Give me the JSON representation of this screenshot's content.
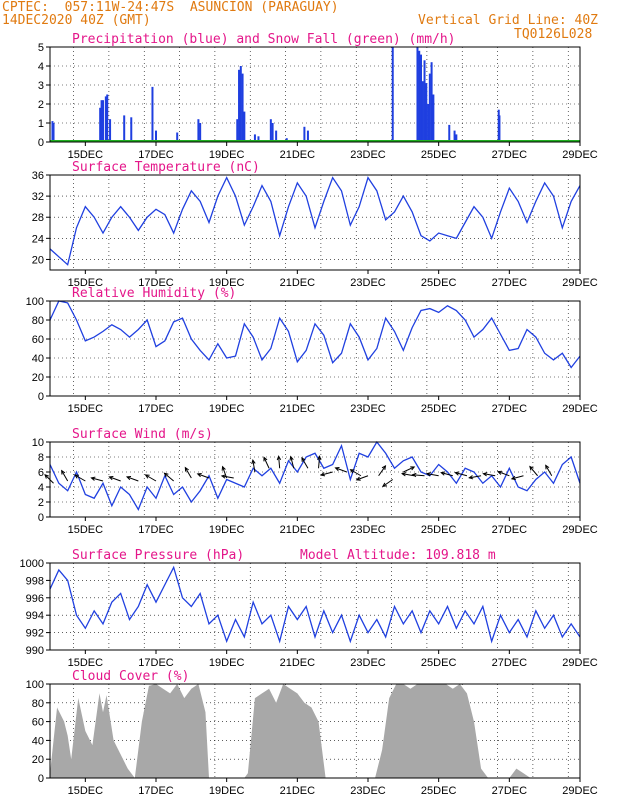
{
  "header": {
    "line1": "CPTEC:  057:11W-24:47S  ASUNCION (PARAGUAY)",
    "line2": "14DEC2020 40Z (GMT)",
    "grid_note": "Vertical Grid Line: 40Z",
    "run_id": "TQ0126L028"
  },
  "colors": {
    "header": "#e07a10",
    "title": "#e4168a",
    "precip": "#1f3fe0",
    "snow": "#20b020",
    "line": "#2040e0",
    "cloud": "#a8a8a8"
  },
  "chart_data": [
    {
      "type": "bar",
      "title": "Precipitation (blue) and Snow Fall (green) (mm/h)",
      "x_start_day": 14.0,
      "x_range": [
        14.0,
        29.0
      ],
      "x_ticks": [
        "15DEC",
        "17DEC",
        "19DEC",
        "21DEC",
        "23DEC",
        "25DEC",
        "27DEC",
        "29DEC"
      ],
      "ylim": [
        0,
        5
      ],
      "yticks": [
        0,
        1,
        2,
        3,
        4,
        5
      ],
      "series": [
        {
          "name": "Precipitation",
          "points": [
            [
              14.07,
              1.1
            ],
            [
              14.1,
              1.0
            ],
            [
              15.42,
              1.8
            ],
            [
              15.46,
              2.2
            ],
            [
              15.5,
              2.2
            ],
            [
              15.58,
              2.4
            ],
            [
              15.62,
              2.5
            ],
            [
              15.7,
              1.2
            ],
            [
              16.1,
              1.4
            ],
            [
              16.3,
              1.3
            ],
            [
              16.9,
              2.9
            ],
            [
              17.0,
              0.6
            ],
            [
              17.6,
              0.5
            ],
            [
              18.2,
              1.2
            ],
            [
              18.25,
              1.0
            ],
            [
              19.3,
              1.2
            ],
            [
              19.35,
              3.8
            ],
            [
              19.4,
              4.0
            ],
            [
              19.45,
              3.6
            ],
            [
              19.5,
              1.6
            ],
            [
              19.8,
              0.4
            ],
            [
              19.9,
              0.3
            ],
            [
              20.25,
              1.2
            ],
            [
              20.3,
              1.0
            ],
            [
              20.4,
              0.6
            ],
            [
              20.7,
              0.2
            ],
            [
              21.2,
              0.8
            ],
            [
              21.3,
              0.6
            ],
            [
              23.7,
              5.0
            ],
            [
              24.4,
              5.0
            ],
            [
              24.45,
              4.8
            ],
            [
              24.5,
              4.6
            ],
            [
              24.55,
              3.2
            ],
            [
              24.6,
              4.3
            ],
            [
              24.65,
              3.1
            ],
            [
              24.7,
              2.0
            ],
            [
              24.75,
              3.6
            ],
            [
              24.8,
              4.2
            ],
            [
              24.85,
              2.5
            ],
            [
              25.3,
              0.9
            ],
            [
              25.45,
              0.6
            ],
            [
              25.5,
              0.4
            ],
            [
              26.7,
              1.7
            ],
            [
              26.72,
              1.4
            ]
          ]
        },
        {
          "name": "Snow Fall",
          "points": [
            [
              14.0,
              0
            ],
            [
              29.0,
              0
            ]
          ]
        }
      ]
    },
    {
      "type": "line",
      "title": "Surface Temperature (nC)",
      "x_ticks": [
        "15DEC",
        "17DEC",
        "19DEC",
        "21DEC",
        "23DEC",
        "25DEC",
        "27DEC",
        "29DEC"
      ],
      "ylim": [
        18,
        36
      ],
      "yticks": [
        20,
        24,
        28,
        32,
        36
      ],
      "x": [
        14.0,
        14.25,
        14.5,
        14.75,
        15.0,
        15.25,
        15.5,
        15.75,
        16.0,
        16.25,
        16.5,
        16.75,
        17.0,
        17.25,
        17.5,
        17.75,
        18.0,
        18.25,
        18.5,
        18.75,
        19.0,
        19.25,
        19.5,
        19.75,
        20.0,
        20.25,
        20.5,
        20.75,
        21.0,
        21.25,
        21.5,
        21.75,
        22.0,
        22.25,
        22.5,
        22.75,
        23.0,
        23.25,
        23.5,
        23.75,
        24.0,
        24.25,
        24.5,
        24.75,
        25.0,
        25.25,
        25.5,
        25.75,
        26.0,
        26.25,
        26.5,
        26.75,
        27.0,
        27.25,
        27.5,
        27.75,
        28.0,
        28.25,
        28.5,
        28.75,
        29.0
      ],
      "y": [
        22.0,
        20.5,
        19.0,
        26.0,
        30.0,
        28.0,
        25.0,
        28.0,
        30.0,
        28.0,
        25.5,
        28.0,
        29.5,
        28.5,
        25.0,
        29.5,
        33.0,
        31.0,
        27.0,
        32.0,
        35.5,
        32.0,
        26.5,
        30.0,
        34.0,
        31.0,
        24.5,
        30.0,
        34.5,
        32.0,
        26.0,
        31.0,
        35.5,
        33.0,
        26.5,
        30.0,
        35.5,
        33.0,
        27.5,
        29.0,
        32.0,
        29.0,
        24.5,
        23.5,
        25.0,
        24.5,
        24.0,
        27.0,
        30.0,
        28.0,
        24.0,
        29.0,
        33.5,
        31.0,
        27.0,
        31.0,
        34.5,
        32.0,
        26.0,
        31.0,
        34.0
      ]
    },
    {
      "type": "line",
      "title": "Relative Humidity (%)",
      "x_ticks": [
        "15DEC",
        "17DEC",
        "19DEC",
        "21DEC",
        "23DEC",
        "25DEC",
        "27DEC",
        "29DEC"
      ],
      "ylim": [
        0,
        100
      ],
      "yticks": [
        0,
        20,
        40,
        60,
        80,
        100
      ],
      "x": [
        14.0,
        14.25,
        14.5,
        14.75,
        15.0,
        15.25,
        15.5,
        15.75,
        16.0,
        16.25,
        16.5,
        16.75,
        17.0,
        17.25,
        17.5,
        17.75,
        18.0,
        18.25,
        18.5,
        18.75,
        19.0,
        19.25,
        19.5,
        19.75,
        20.0,
        20.25,
        20.5,
        20.75,
        21.0,
        21.25,
        21.5,
        21.75,
        22.0,
        22.25,
        22.5,
        22.75,
        23.0,
        23.25,
        23.5,
        23.75,
        24.0,
        24.25,
        24.5,
        24.75,
        25.0,
        25.25,
        25.5,
        25.75,
        26.0,
        26.25,
        26.5,
        26.75,
        27.0,
        27.25,
        27.5,
        27.75,
        28.0,
        28.25,
        28.5,
        28.75,
        29.0
      ],
      "y": [
        80,
        100,
        98,
        80,
        58,
        62,
        68,
        75,
        70,
        62,
        70,
        80,
        52,
        58,
        78,
        82,
        60,
        48,
        38,
        55,
        40,
        42,
        76,
        62,
        38,
        50,
        82,
        68,
        36,
        48,
        76,
        64,
        35,
        45,
        76,
        62,
        38,
        50,
        82,
        68,
        48,
        72,
        90,
        92,
        88,
        95,
        90,
        80,
        62,
        70,
        82,
        65,
        48,
        50,
        70,
        62,
        45,
        38,
        45,
        30,
        42
      ]
    },
    {
      "type": "line",
      "title": "Surface Wind (m/s)",
      "x_ticks": [
        "15DEC",
        "17DEC",
        "19DEC",
        "21DEC",
        "23DEC",
        "25DEC",
        "27DEC",
        "29DEC"
      ],
      "ylim": [
        0,
        10
      ],
      "yticks": [
        0,
        2,
        4,
        6,
        8,
        10
      ],
      "x": [
        14.0,
        14.25,
        14.5,
        14.75,
        15.0,
        15.25,
        15.5,
        15.75,
        16.0,
        16.25,
        16.5,
        16.75,
        17.0,
        17.25,
        17.5,
        17.75,
        18.0,
        18.25,
        18.5,
        18.75,
        19.0,
        19.25,
        19.5,
        19.75,
        20.0,
        20.25,
        20.5,
        20.75,
        21.0,
        21.25,
        21.5,
        21.75,
        22.0,
        22.25,
        22.5,
        22.75,
        23.0,
        23.25,
        23.5,
        23.75,
        24.0,
        24.25,
        24.5,
        24.75,
        25.0,
        25.25,
        25.5,
        25.75,
        26.0,
        26.25,
        26.5,
        26.75,
        27.0,
        27.25,
        27.5,
        27.75,
        28.0,
        28.25,
        28.5,
        28.75,
        29.0
      ],
      "y": [
        7.0,
        4.5,
        3.5,
        6.0,
        3.0,
        2.5,
        4.5,
        1.5,
        4.0,
        3.0,
        1.0,
        4.0,
        2.5,
        5.5,
        3.0,
        4.0,
        2.0,
        3.5,
        5.5,
        2.5,
        5.0,
        4.5,
        4.0,
        6.5,
        5.5,
        6.5,
        4.5,
        7.5,
        6.0,
        8.0,
        8.5,
        6.5,
        7.0,
        9.5,
        5.0,
        8.5,
        8.0,
        10.0,
        8.5,
        6.5,
        7.5,
        8.0,
        6.0,
        5.5,
        7.0,
        6.0,
        4.5,
        6.5,
        6.0,
        4.5,
        5.5,
        4.0,
        6.5,
        4.0,
        3.5,
        5.0,
        6.0,
        4.5,
        7.0,
        8.0,
        4.5
      ],
      "arrows": [
        [
          14.1,
          4.5,
          135
        ],
        [
          14.5,
          4.8,
          120
        ],
        [
          15.0,
          4.8,
          150
        ],
        [
          15.5,
          4.8,
          165
        ],
        [
          16.0,
          4.8,
          160
        ],
        [
          16.5,
          4.8,
          160
        ],
        [
          17.0,
          4.8,
          150
        ],
        [
          17.5,
          4.8,
          140
        ],
        [
          18.0,
          5.2,
          120
        ],
        [
          18.5,
          5.2,
          160
        ],
        [
          19.0,
          5.2,
          110
        ],
        [
          19.2,
          5.2,
          170
        ],
        [
          19.8,
          6.0,
          100
        ],
        [
          20.2,
          6.5,
          115
        ],
        [
          20.5,
          6.5,
          95
        ],
        [
          20.9,
          6.5,
          105
        ],
        [
          21.3,
          6.5,
          120
        ],
        [
          21.6,
          6.5,
          85
        ],
        [
          22.0,
          6.0,
          195
        ],
        [
          22.4,
          6.0,
          160
        ],
        [
          22.8,
          5.5,
          150
        ],
        [
          23.0,
          5.5,
          200
        ],
        [
          23.3,
          5.5,
          55
        ],
        [
          23.7,
          5.0,
          215
        ],
        [
          24.0,
          6.0,
          25
        ],
        [
          24.3,
          5.5,
          170
        ],
        [
          24.6,
          5.5,
          175
        ],
        [
          25.0,
          5.5,
          170
        ],
        [
          25.4,
          5.5,
          165
        ],
        [
          25.8,
          5.5,
          165
        ],
        [
          26.2,
          5.5,
          190
        ],
        [
          26.6,
          5.5,
          170
        ],
        [
          27.0,
          5.5,
          160
        ],
        [
          27.4,
          5.5,
          195
        ],
        [
          27.8,
          5.5,
          130
        ],
        [
          28.2,
          5.5,
          120
        ]
      ]
    },
    {
      "type": "line",
      "title": "Surface Pressure (hPa)",
      "annotation": "Model Altitude: 109.818 m",
      "x_ticks": [
        "15DEC",
        "17DEC",
        "19DEC",
        "21DEC",
        "23DEC",
        "25DEC",
        "27DEC",
        "29DEC"
      ],
      "ylim": [
        990,
        1000
      ],
      "yticks": [
        990,
        992,
        994,
        996,
        998,
        1000
      ],
      "x": [
        14.0,
        14.25,
        14.5,
        14.75,
        15.0,
        15.25,
        15.5,
        15.75,
        16.0,
        16.25,
        16.5,
        16.75,
        17.0,
        17.25,
        17.5,
        17.75,
        18.0,
        18.25,
        18.5,
        18.75,
        19.0,
        19.25,
        19.5,
        19.75,
        20.0,
        20.25,
        20.5,
        20.75,
        21.0,
        21.25,
        21.5,
        21.75,
        22.0,
        22.25,
        22.5,
        22.75,
        23.0,
        23.25,
        23.5,
        23.75,
        24.0,
        24.25,
        24.5,
        24.75,
        25.0,
        25.25,
        25.5,
        25.75,
        26.0,
        26.25,
        26.5,
        26.75,
        27.0,
        27.25,
        27.5,
        27.75,
        28.0,
        28.25,
        28.5,
        28.75,
        29.0
      ],
      "y": [
        997.0,
        999.2,
        998.0,
        994.0,
        992.5,
        994.5,
        993.0,
        995.5,
        996.5,
        993.5,
        995.0,
        997.5,
        995.5,
        997.5,
        999.5,
        996.0,
        995.0,
        996.5,
        993.0,
        994.0,
        991.0,
        993.5,
        991.5,
        995.5,
        993.0,
        994.0,
        991.0,
        995.0,
        993.5,
        995.0,
        991.5,
        994.5,
        992.0,
        994.0,
        991.0,
        994.0,
        992.0,
        993.5,
        991.5,
        995.0,
        993.0,
        994.5,
        992.0,
        994.5,
        993.0,
        995.0,
        992.5,
        994.5,
        993.0,
        995.0,
        991.0,
        994.0,
        992.0,
        993.5,
        991.5,
        994.5,
        992.5,
        994.0,
        991.5,
        993.0,
        991.5
      ]
    },
    {
      "type": "area",
      "title": "Cloud Cover (%)",
      "x_ticks": [
        "15DEC",
        "17DEC",
        "19DEC",
        "21DEC",
        "23DEC",
        "25DEC",
        "27DEC",
        "29DEC"
      ],
      "ylim": [
        0,
        100
      ],
      "yticks": [
        0,
        20,
        40,
        60,
        80,
        100
      ],
      "x": [
        14.0,
        14.2,
        14.4,
        14.5,
        14.6,
        14.8,
        15.0,
        15.2,
        15.4,
        15.5,
        15.6,
        15.8,
        16.0,
        16.2,
        16.4,
        16.6,
        16.8,
        17.0,
        17.2,
        17.4,
        17.6,
        17.8,
        18.0,
        18.2,
        18.4,
        18.5,
        18.6,
        18.8,
        19.0,
        19.2,
        19.4,
        19.5,
        19.6,
        19.8,
        20.0,
        20.2,
        20.4,
        20.6,
        20.8,
        21.0,
        21.2,
        21.4,
        21.6,
        21.8,
        22.0,
        22.2,
        22.4,
        22.6,
        22.8,
        23.0,
        23.2,
        23.4,
        23.6,
        23.8,
        24.0,
        24.2,
        24.4,
        24.6,
        24.8,
        25.0,
        25.2,
        25.4,
        25.6,
        25.8,
        26.0,
        26.2,
        26.4,
        26.6,
        26.8,
        27.0,
        27.2,
        27.4,
        27.6,
        27.8,
        28.0,
        28.2,
        28.4,
        28.6,
        28.8,
        29.0
      ],
      "y": [
        5,
        75,
        60,
        45,
        20,
        85,
        50,
        35,
        90,
        70,
        88,
        40,
        25,
        10,
        0,
        60,
        98,
        100,
        95,
        90,
        100,
        85,
        95,
        100,
        70,
        0,
        0,
        0,
        0,
        0,
        0,
        0,
        5,
        85,
        90,
        95,
        80,
        100,
        95,
        90,
        80,
        75,
        60,
        0,
        0,
        0,
        0,
        0,
        0,
        0,
        0,
        30,
        85,
        100,
        100,
        95,
        100,
        100,
        100,
        100,
        100,
        95,
        100,
        90,
        60,
        10,
        0,
        0,
        0,
        0,
        10,
        5,
        0,
        0,
        0,
        0,
        0,
        0,
        0,
        0
      ]
    }
  ]
}
